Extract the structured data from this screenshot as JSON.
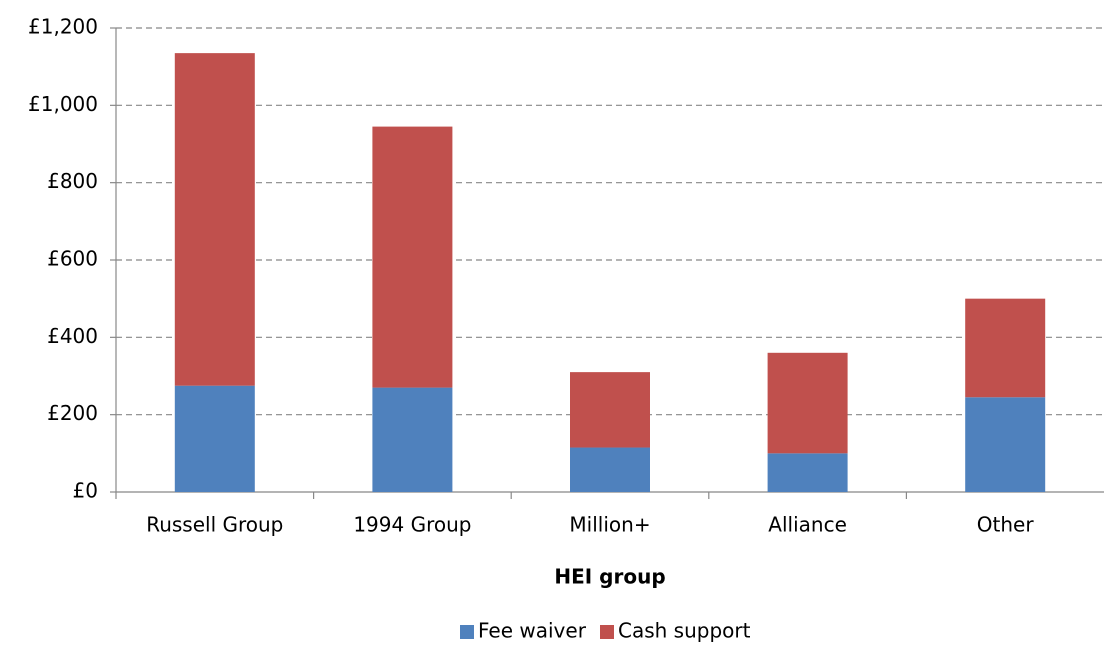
{
  "chart_data": {
    "type": "stacked_bar",
    "x_label": "HEI group",
    "categories": [
      "Russell Group",
      "1994 Group",
      "Million+",
      "Alliance",
      "Other"
    ],
    "series": [
      {
        "name": "Fee waiver",
        "color": "#4f81bd",
        "values": [
          275,
          270,
          115,
          100,
          245
        ]
      },
      {
        "name": "Cash support",
        "color": "#c0504d",
        "values": [
          860,
          675,
          195,
          260,
          255
        ]
      }
    ],
    "ylim": [
      0,
      1200
    ],
    "yticks": [
      {
        "value": 0,
        "label": "£0"
      },
      {
        "value": 200,
        "label": "£200"
      },
      {
        "value": 400,
        "label": "£400"
      },
      {
        "value": 600,
        "label": "£600"
      },
      {
        "value": 800,
        "label": "£800"
      },
      {
        "value": 1000,
        "label": "£1,000"
      },
      {
        "value": 1200,
        "label": "£1,200"
      }
    ],
    "grid": true,
    "legend": "bottom"
  }
}
